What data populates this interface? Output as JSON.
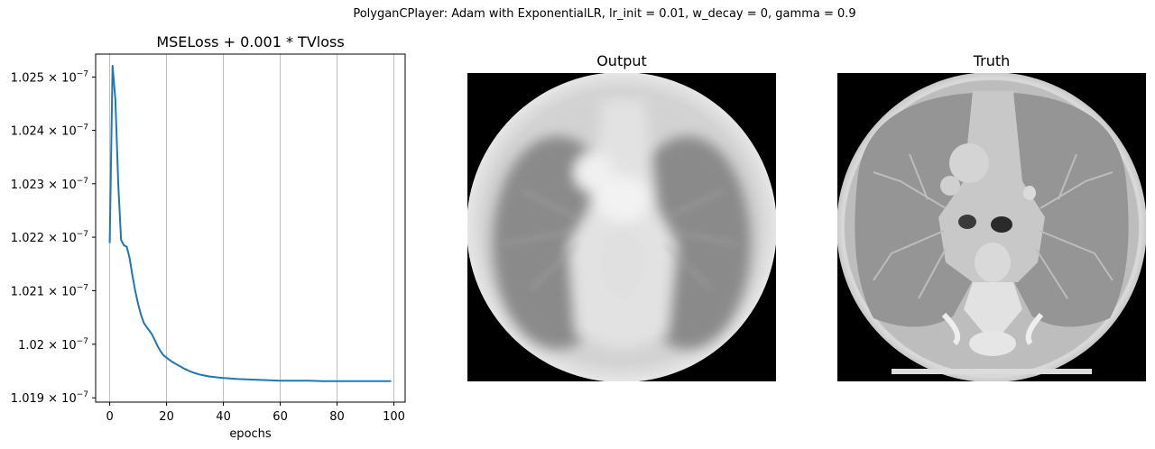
{
  "suptitle": "PolyganCPlayer: Adam with ExponentialLR, lr_init = 0.01, w_decay = 0, gamma = 0.9",
  "images": {
    "output_title": "Output",
    "truth_title": "Truth"
  },
  "chart_data": {
    "type": "line",
    "title": "MSELoss + 0.001 * TVloss",
    "xlabel": "epochs",
    "ylabel": "",
    "y_scale": "log",
    "xlim": [
      -4.95,
      103.95
    ],
    "ylim": [
      1.01892e-07,
      1.02543e-07
    ],
    "x_ticks": [
      0,
      20,
      40,
      60,
      80,
      100
    ],
    "y_ticks": [
      {
        "value": 1.019e-07,
        "mantissa": "1.019",
        "exp": "−7"
      },
      {
        "value": 1.02e-07,
        "mantissa": "1.02",
        "exp": "−7"
      },
      {
        "value": 1.021e-07,
        "mantissa": "1.021",
        "exp": "−7"
      },
      {
        "value": 1.022e-07,
        "mantissa": "1.022",
        "exp": "−7"
      },
      {
        "value": 1.023e-07,
        "mantissa": "1.023",
        "exp": "−7"
      },
      {
        "value": 1.024e-07,
        "mantissa": "1.024",
        "exp": "−7"
      },
      {
        "value": 1.025e-07,
        "mantissa": "1.025",
        "exp": "−7"
      }
    ],
    "x_grid": true,
    "y_grid": false,
    "series": [
      {
        "color": "#1f77b4",
        "x": [
          0,
          1,
          2,
          3,
          4,
          5,
          6,
          7,
          8,
          9,
          10,
          11,
          12,
          13,
          14,
          15,
          16,
          17,
          18,
          19,
          20,
          22,
          24,
          26,
          28,
          30,
          32,
          35,
          38,
          40,
          45,
          50,
          55,
          60,
          65,
          70,
          75,
          80,
          85,
          90,
          95,
          99
        ],
        "y": [
          1.02189e-07,
          1.02521e-07,
          1.02457e-07,
          1.023e-07,
          1.02195e-07,
          1.02185e-07,
          1.02182e-07,
          1.02161e-07,
          1.02128e-07,
          1.02099e-07,
          1.02075e-07,
          1.02055e-07,
          1.0204e-07,
          1.02032e-07,
          1.02025e-07,
          1.02017e-07,
          1.02006e-07,
          1.01995e-07,
          1.01986e-07,
          1.01979e-07,
          1.01975e-07,
          1.01967e-07,
          1.01961e-07,
          1.01955e-07,
          1.0195e-07,
          1.01946e-07,
          1.01943e-07,
          1.0194e-07,
          1.01938e-07,
          1.01937e-07,
          1.01935e-07,
          1.01934e-07,
          1.01933e-07,
          1.01932e-07,
          1.01932e-07,
          1.01932e-07,
          1.01931e-07,
          1.01931e-07,
          1.01931e-07,
          1.01931e-07,
          1.01931e-07,
          1.01931e-07
        ]
      }
    ]
  }
}
